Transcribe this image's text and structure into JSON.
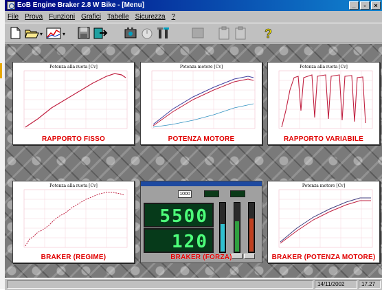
{
  "window": {
    "title": "EoB Engine Braker 2.8 W Bike - [Menu]"
  },
  "menu": [
    "File",
    "Prova",
    "Funzioni",
    "Grafici",
    "Tabelle",
    "Sicurezza",
    "?"
  ],
  "toolbar": {
    "icons": [
      "new-file-icon",
      "open-folder-icon",
      "chart-icon",
      "save-icon",
      "export-icon",
      "engine-icon",
      "timer-icon",
      "tools-icon",
      "blank-icon",
      "clipboard-icon",
      "clipboard2-icon",
      "help-icon"
    ]
  },
  "panels": [
    {
      "caption": "RAPPORTO FISSO",
      "plot_title": "Potenza alla ruota [Cv]"
    },
    {
      "caption": "POTENZA MOTORE",
      "plot_title": "Potenza motore [Cv]"
    },
    {
      "caption": "RAPPORTO VARIABILE",
      "plot_title": "Potenza alla ruota [Cv]"
    },
    {
      "caption": "BRAKER (REGIME)",
      "plot_title": "Potenza alla ruota [Cv]"
    },
    {
      "caption": "BRAKER (FORZA)"
    },
    {
      "caption": "BRAKER (POTENZA MOTORE)",
      "plot_title": "Potenza motore [Cv]"
    }
  ],
  "braker": {
    "input_value": "1000",
    "rpm_display": "5500",
    "force_display": "120"
  },
  "status": {
    "date": "14/11/2002",
    "time": "17.27"
  },
  "colors": {
    "titlebar": "#000080",
    "caption": "#e00000",
    "display": "#4dff7a"
  }
}
